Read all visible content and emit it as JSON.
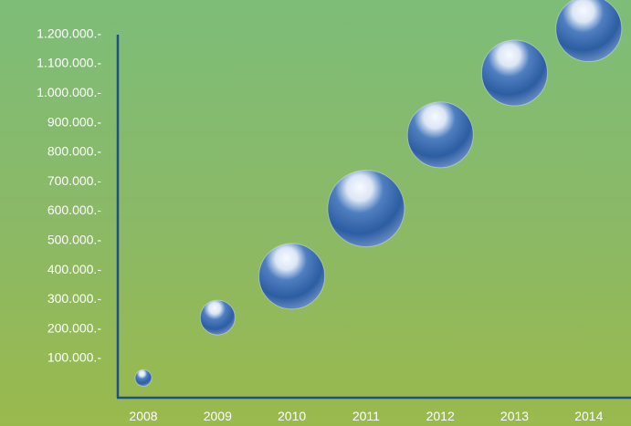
{
  "chart_data": {
    "type": "scatter",
    "categories": [
      "2008",
      "2009",
      "2010",
      "2011",
      "2012",
      "2013",
      "2014"
    ],
    "values": [
      30000,
      235000,
      375000,
      605000,
      855000,
      1065000,
      1215000
    ],
    "y_ticks": [
      "100.000.-",
      "200.000.-",
      "300.000.-",
      "400.000.-",
      "500.000.-",
      "600.000.-",
      "700.000.-",
      "800.000.-",
      "900.000.-",
      "1.000.000.-",
      "1.100.000.-",
      "1.200.000.-"
    ],
    "ylim": [
      0,
      1300000
    ],
    "title": "",
    "xlabel": "",
    "ylabel": "",
    "grid": false,
    "colors": {
      "axis": "#1f4f86",
      "label": "#ffffff",
      "bubble_dark": "#2b5ea5",
      "bubble_light": "#f4f8ff"
    }
  }
}
